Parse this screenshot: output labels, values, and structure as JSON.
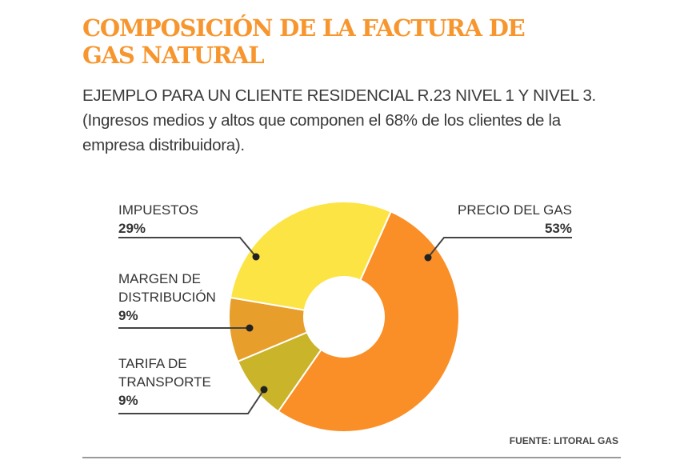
{
  "chart_data": {
    "type": "pie",
    "donut": true,
    "title": "COMPOSICIÓN DE LA FACTURA DE GAS NATURAL",
    "subtitle": "EJEMPLO PARA UN CLIENTE RESIDENCIAL R.23 NIVEL 1 Y NIVEL 3. (Ingresos medios y altos que componen el 68% de los clientes de la empresa distribuidora).",
    "source": "FUENTE: LITORAL GAS",
    "slices": [
      {
        "label": "PRECIO DEL GAS",
        "label_lines": [
          "PRECIO DEL GAS"
        ],
        "value": 53,
        "display": "53%",
        "color": "#F98F26"
      },
      {
        "label": "TARIFA DE TRANSPORTE",
        "label_lines": [
          "TARIFA DE",
          "TRANSPORTE"
        ],
        "value": 9,
        "display": "9%",
        "color": "#C9B42A"
      },
      {
        "label": "MARGEN DE DISTRIBUCIÓN",
        "label_lines": [
          "MARGEN DE",
          "DISTRIBUCIÓN"
        ],
        "value": 9,
        "display": "9%",
        "color": "#E89E2A"
      },
      {
        "label": "IMPUESTOS",
        "label_lines": [
          "IMPUESTOS"
        ],
        "value": 29,
        "display": "29%",
        "color": "#FCE444"
      }
    ]
  },
  "colors": {
    "title": "#F7962E",
    "leader": "#444444",
    "rule": "#9a9a9a"
  }
}
